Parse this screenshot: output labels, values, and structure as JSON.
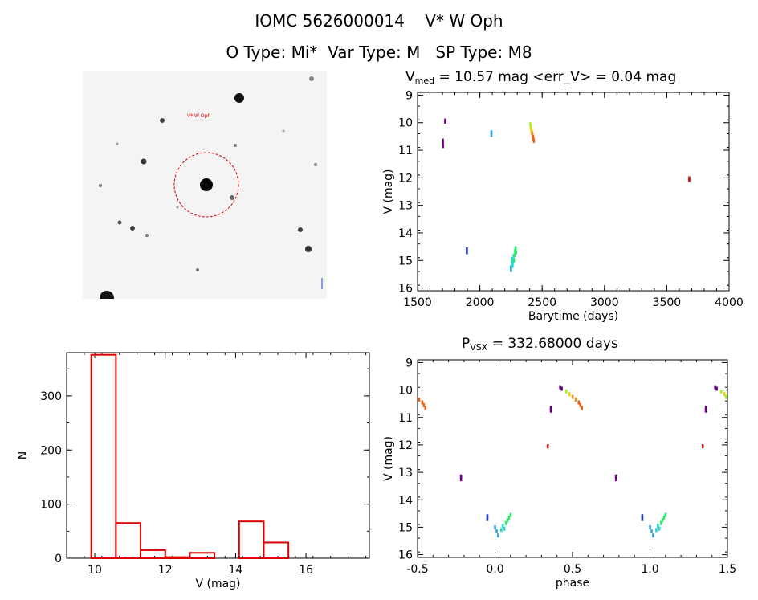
{
  "header": {
    "line1": "IOMC 5626000014    V* W Oph",
    "line2": "O Type: Mi*  Var Type: M   SP Type: M8"
  },
  "sky_image": {
    "target_label": "V* W Oph",
    "colors": {
      "circle": "#dd0000",
      "background": "#f4f4f4"
    }
  },
  "colors": {
    "hist": "#dd0000",
    "points": [
      "#6a0080",
      "#1f3fbf",
      "#2fa0e6",
      "#25d8d0",
      "#2ee86a",
      "#a8ee22",
      "#f0d000",
      "#f09018",
      "#e86010",
      "#d01010"
    ]
  },
  "chart_data": [
    {
      "id": "lightcurve",
      "type": "scatter",
      "title_main": "V",
      "title_sub": "med",
      "title_rest": " = 10.57 mag <err_V> = 0.04 mag",
      "xlabel": "Barytime (days)",
      "ylabel": "V (mag)",
      "xlim": [
        1500,
        4000
      ],
      "ylim": [
        16.1,
        8.9
      ],
      "xticks": [
        1500,
        2000,
        2500,
        3000,
        3500,
        4000
      ],
      "yticks": [
        9,
        10,
        11,
        12,
        13,
        14,
        15,
        16
      ],
      "y_inverted": true,
      "points": [
        {
          "x": 1702,
          "y": 10.65,
          "c": 0
        },
        {
          "x": 1702,
          "y": 10.75,
          "c": 0
        },
        {
          "x": 1703,
          "y": 10.85,
          "c": 0
        },
        {
          "x": 1722,
          "y": 9.92,
          "c": 0
        },
        {
          "x": 1722,
          "y": 9.97,
          "c": 0
        },
        {
          "x": 1895,
          "y": 14.6,
          "c": 1
        },
        {
          "x": 1895,
          "y": 14.7,
          "c": 1
        },
        {
          "x": 2092,
          "y": 10.35,
          "c": 2
        },
        {
          "x": 2092,
          "y": 10.45,
          "c": 2
        },
        {
          "x": 2248,
          "y": 15.25,
          "c": 2
        },
        {
          "x": 2250,
          "y": 15.35,
          "c": 2
        },
        {
          "x": 2255,
          "y": 15.1,
          "c": 3
        },
        {
          "x": 2258,
          "y": 14.95,
          "c": 3
        },
        {
          "x": 2262,
          "y": 15.2,
          "c": 3
        },
        {
          "x": 2265,
          "y": 15.05,
          "c": 3
        },
        {
          "x": 2270,
          "y": 14.85,
          "c": 3
        },
        {
          "x": 2273,
          "y": 15.0,
          "c": 4
        },
        {
          "x": 2278,
          "y": 14.8,
          "c": 4
        },
        {
          "x": 2282,
          "y": 14.65,
          "c": 4
        },
        {
          "x": 2286,
          "y": 14.55,
          "c": 4
        },
        {
          "x": 2290,
          "y": 14.7,
          "c": 4
        },
        {
          "x": 2404,
          "y": 10.05,
          "c": 5
        },
        {
          "x": 2407,
          "y": 10.15,
          "c": 5
        },
        {
          "x": 2410,
          "y": 10.22,
          "c": 6
        },
        {
          "x": 2414,
          "y": 10.3,
          "c": 6
        },
        {
          "x": 2418,
          "y": 10.38,
          "c": 7
        },
        {
          "x": 2422,
          "y": 10.45,
          "c": 7
        },
        {
          "x": 2426,
          "y": 10.52,
          "c": 8
        },
        {
          "x": 2430,
          "y": 10.6,
          "c": 8
        },
        {
          "x": 2433,
          "y": 10.66,
          "c": 8
        },
        {
          "x": 3680,
          "y": 12.02,
          "c": 9
        },
        {
          "x": 3680,
          "y": 12.08,
          "c": 9
        }
      ]
    },
    {
      "id": "histogram",
      "type": "bar",
      "xlabel": "V (mag)",
      "ylabel": "N",
      "xlim": [
        9.2,
        17.8
      ],
      "ylim": [
        0,
        380
      ],
      "xticks": [
        10,
        12,
        14,
        16
      ],
      "yticks": [
        0,
        100,
        200,
        300
      ],
      "bins": [
        {
          "x0": 9.9,
          "x1": 10.6,
          "count": 376
        },
        {
          "x0": 10.6,
          "x1": 11.3,
          "count": 65
        },
        {
          "x0": 11.3,
          "x1": 12.0,
          "count": 15
        },
        {
          "x0": 12.0,
          "x1": 12.7,
          "count": 2
        },
        {
          "x0": 12.7,
          "x1": 13.4,
          "count": 10
        },
        {
          "x0": 13.4,
          "x1": 14.1,
          "count": 0
        },
        {
          "x0": 14.1,
          "x1": 14.8,
          "count": 68
        },
        {
          "x0": 14.8,
          "x1": 15.5,
          "count": 29
        }
      ]
    },
    {
      "id": "phased",
      "type": "scatter",
      "title_main": "P",
      "title_sub": "VSX",
      "title_rest": " = 332.68000 days",
      "xlabel": "phase",
      "ylabel": "V (mag)",
      "xlim": [
        -0.5,
        1.5
      ],
      "ylim": [
        16.1,
        8.9
      ],
      "xticks": [
        -0.5,
        0.0,
        0.5,
        1.0,
        1.5
      ],
      "yticks": [
        9,
        10,
        11,
        12,
        13,
        14,
        15,
        16
      ],
      "y_inverted": true,
      "points": [
        {
          "x": -0.49,
          "y": 10.35,
          "c": 8
        },
        {
          "x": -0.47,
          "y": 10.45,
          "c": 8
        },
        {
          "x": -0.46,
          "y": 10.55,
          "c": 8
        },
        {
          "x": -0.45,
          "y": 10.65,
          "c": 8
        },
        {
          "x": -0.22,
          "y": 13.15,
          "c": 0
        },
        {
          "x": -0.22,
          "y": 13.25,
          "c": 0
        },
        {
          "x": -0.05,
          "y": 14.6,
          "c": 1
        },
        {
          "x": -0.05,
          "y": 14.7,
          "c": 1
        },
        {
          "x": 0.0,
          "y": 15.0,
          "c": 2
        },
        {
          "x": 0.01,
          "y": 15.15,
          "c": 2
        },
        {
          "x": 0.02,
          "y": 15.3,
          "c": 2
        },
        {
          "x": 0.04,
          "y": 15.1,
          "c": 3
        },
        {
          "x": 0.05,
          "y": 14.95,
          "c": 3
        },
        {
          "x": 0.06,
          "y": 15.05,
          "c": 3
        },
        {
          "x": 0.07,
          "y": 14.85,
          "c": 4
        },
        {
          "x": 0.08,
          "y": 14.75,
          "c": 4
        },
        {
          "x": 0.09,
          "y": 14.65,
          "c": 4
        },
        {
          "x": 0.1,
          "y": 14.55,
          "c": 4
        },
        {
          "x": 0.34,
          "y": 12.05,
          "c": 9
        },
        {
          "x": 0.36,
          "y": 10.65,
          "c": 0
        },
        {
          "x": 0.36,
          "y": 10.75,
          "c": 0
        },
        {
          "x": 0.42,
          "y": 9.9,
          "c": 0
        },
        {
          "x": 0.43,
          "y": 9.95,
          "c": 0
        },
        {
          "x": 0.46,
          "y": 10.05,
          "c": 5
        },
        {
          "x": 0.48,
          "y": 10.15,
          "c": 6
        },
        {
          "x": 0.5,
          "y": 10.25,
          "c": 7
        },
        {
          "x": 0.52,
          "y": 10.35,
          "c": 7
        },
        {
          "x": 0.54,
          "y": 10.45,
          "c": 8
        },
        {
          "x": 0.55,
          "y": 10.55,
          "c": 8
        },
        {
          "x": 0.56,
          "y": 10.65,
          "c": 8
        },
        {
          "x": 0.78,
          "y": 13.15,
          "c": 0
        },
        {
          "x": 0.78,
          "y": 13.25,
          "c": 0
        },
        {
          "x": 0.95,
          "y": 14.6,
          "c": 1
        },
        {
          "x": 0.95,
          "y": 14.7,
          "c": 1
        },
        {
          "x": 1.0,
          "y": 15.0,
          "c": 2
        },
        {
          "x": 1.01,
          "y": 15.15,
          "c": 2
        },
        {
          "x": 1.02,
          "y": 15.3,
          "c": 2
        },
        {
          "x": 1.04,
          "y": 15.1,
          "c": 3
        },
        {
          "x": 1.05,
          "y": 14.95,
          "c": 3
        },
        {
          "x": 1.06,
          "y": 15.05,
          "c": 3
        },
        {
          "x": 1.07,
          "y": 14.85,
          "c": 4
        },
        {
          "x": 1.08,
          "y": 14.75,
          "c": 4
        },
        {
          "x": 1.09,
          "y": 14.65,
          "c": 4
        },
        {
          "x": 1.1,
          "y": 14.55,
          "c": 4
        },
        {
          "x": 1.34,
          "y": 12.05,
          "c": 9
        },
        {
          "x": 1.36,
          "y": 10.65,
          "c": 0
        },
        {
          "x": 1.36,
          "y": 10.75,
          "c": 0
        },
        {
          "x": 1.42,
          "y": 9.9,
          "c": 0
        },
        {
          "x": 1.43,
          "y": 9.95,
          "c": 0
        },
        {
          "x": 1.46,
          "y": 10.05,
          "c": 5
        },
        {
          "x": 1.48,
          "y": 10.15,
          "c": 6
        },
        {
          "x": 1.49,
          "y": 10.25,
          "c": 5
        }
      ]
    }
  ]
}
